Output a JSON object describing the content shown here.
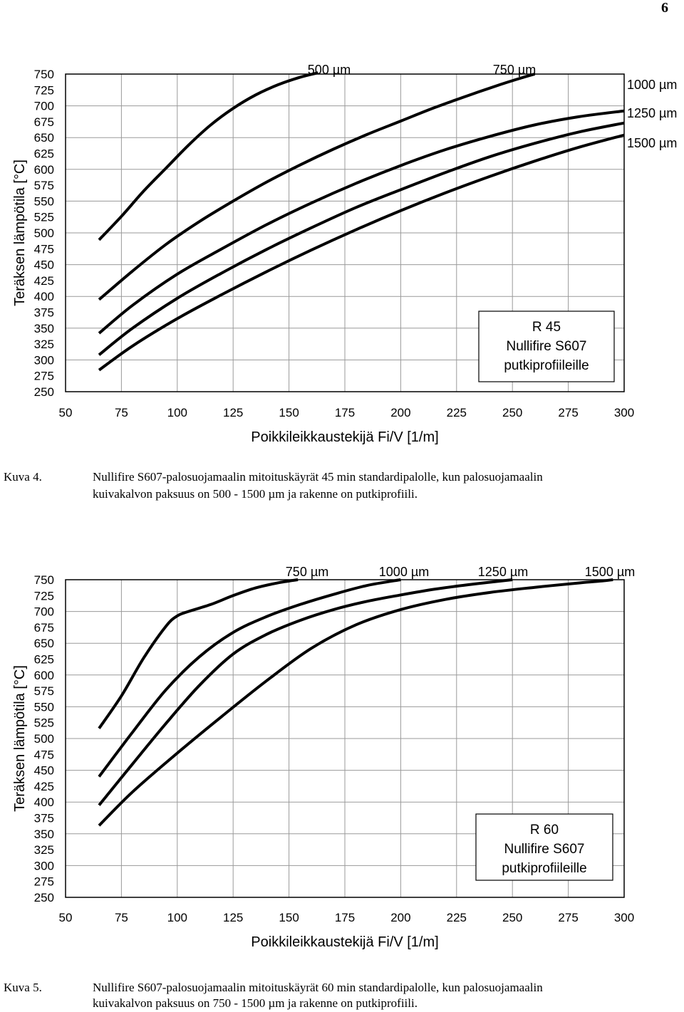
{
  "page_number": "6",
  "chart_data": [
    {
      "type": "line",
      "xlabel": "Poikkileikkaustekijä Fi/V [1/m]",
      "ylabel": "Teräksen lämpötila [°C]",
      "xlim": [
        50,
        300
      ],
      "ylim": [
        250,
        750
      ],
      "x_ticks": [
        "50",
        "75",
        "100",
        "125",
        "150",
        "175",
        "200",
        "225",
        "250",
        "275",
        "300"
      ],
      "y_ticks": [
        "750",
        "725",
        "700",
        "675",
        "650",
        "625",
        "600",
        "575",
        "550",
        "525",
        "500",
        "475",
        "450",
        "425",
        "400",
        "375",
        "350",
        "325",
        "300",
        "275",
        "250"
      ],
      "grid": true,
      "legend_box": [
        "R 45",
        "Nullifire S607",
        "putkiprofiileille"
      ],
      "series": [
        {
          "name": "500 µm",
          "x": [
            65,
            75,
            85,
            95,
            105,
            115,
            125,
            135,
            145,
            155,
            163
          ],
          "y": [
            489,
            526,
            566,
            602,
            638,
            670,
            696,
            717,
            733,
            745,
            752
          ]
        },
        {
          "name": "750 µm",
          "x": [
            65,
            80,
            95,
            110,
            125,
            140,
            155,
            170,
            185,
            200,
            215,
            230,
            245,
            255,
            260
          ],
          "y": [
            395,
            440,
            482,
            518,
            550,
            580,
            607,
            632,
            655,
            676,
            697,
            716,
            734,
            745,
            750
          ]
        },
        {
          "name": "1000 µm",
          "x": [
            65,
            80,
            100,
            120,
            140,
            160,
            180,
            200,
            220,
            240,
            260,
            280,
            300
          ],
          "y": [
            342,
            386,
            435,
            475,
            513,
            547,
            578,
            606,
            631,
            652,
            670,
            683,
            692
          ]
        },
        {
          "name": "1250 µm",
          "x": [
            65,
            80,
            100,
            120,
            140,
            160,
            180,
            200,
            220,
            240,
            260,
            280,
            300
          ],
          "y": [
            308,
            350,
            397,
            437,
            474,
            508,
            540,
            568,
            595,
            620,
            641,
            659,
            673
          ]
        },
        {
          "name": "1500 µm",
          "x": [
            65,
            80,
            100,
            120,
            140,
            160,
            180,
            200,
            220,
            240,
            260,
            280,
            300
          ],
          "y": [
            284,
            322,
            365,
            403,
            439,
            473,
            505,
            535,
            563,
            589,
            613,
            635,
            654
          ]
        }
      ]
    },
    {
      "type": "line",
      "xlabel": "Poikkileikkaustekijä Fi/V [1/m]",
      "ylabel": "Teräksen lämpötila [°C]",
      "xlim": [
        50,
        300
      ],
      "ylim": [
        250,
        750
      ],
      "x_ticks": [
        "50",
        "75",
        "100",
        "125",
        "150",
        "175",
        "200",
        "225",
        "250",
        "275",
        "300"
      ],
      "y_ticks": [
        "750",
        "725",
        "700",
        "675",
        "650",
        "625",
        "600",
        "575",
        "550",
        "525",
        "500",
        "475",
        "450",
        "425",
        "400",
        "375",
        "350",
        "325",
        "300",
        "275",
        "250"
      ],
      "grid": true,
      "legend_box": [
        "R 60",
        "Nullifire S607",
        "putkiprofiileille"
      ],
      "series": [
        {
          "name": "750 µm",
          "x": [
            65,
            75,
            85,
            95,
            100,
            105,
            115,
            125,
            135,
            145,
            154
          ],
          "y": [
            516,
            567,
            627,
            677,
            693,
            700,
            711,
            725,
            737,
            745,
            750
          ]
        },
        {
          "name": "1000 µm",
          "x": [
            65,
            80,
            95,
            110,
            125,
            140,
            155,
            170,
            185,
            200
          ],
          "y": [
            440,
            510,
            577,
            629,
            667,
            692,
            711,
            727,
            741,
            750
          ]
        },
        {
          "name": "1250 µm",
          "x": [
            65,
            80,
            95,
            110,
            125,
            140,
            155,
            170,
            185,
            200,
            215,
            230,
            245,
            250
          ],
          "y": [
            395,
            460,
            524,
            584,
            633,
            664,
            686,
            703,
            716,
            726,
            735,
            742,
            748,
            750
          ]
        },
        {
          "name": "1500 µm",
          "x": [
            65,
            80,
            100,
            120,
            140,
            160,
            180,
            200,
            220,
            240,
            260,
            280,
            290,
            295
          ],
          "y": [
            363,
            416,
            477,
            535,
            591,
            642,
            679,
            703,
            719,
            730,
            738,
            745,
            748,
            750
          ]
        }
      ]
    }
  ],
  "captions": [
    {
      "label": "Kuva 4.",
      "lines": [
        "Nullifire S607-palosuojamaalin mitoituskäyrät 45 min standardipalolle, kun palosuojamaalin",
        "kuivakalvon paksuus on 500 - 1500 µm ja rakenne on putkiprofiili."
      ]
    },
    {
      "label": "Kuva 5.",
      "lines": [
        "Nullifire S607-palosuojamaalin mitoituskäyrät 60 min standardipalolle, kun palosuojamaalin",
        "kuivakalvon paksuus on 750 - 1500 µm ja rakenne on putkiprofiili."
      ]
    }
  ]
}
